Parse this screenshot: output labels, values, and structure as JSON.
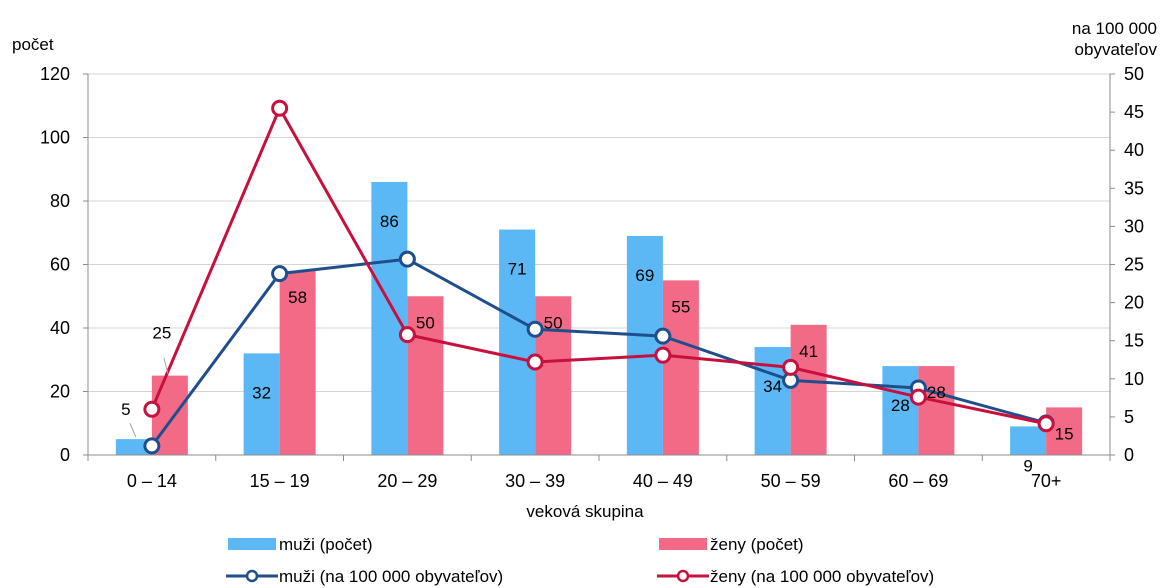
{
  "chart_data": {
    "type": "bar",
    "xlabel": "veková skupina",
    "ylabel_left": "počet",
    "ylabel_right_line1": "na 100 000",
    "ylabel_right_line2": "obyvateľov",
    "ylim_left": [
      0,
      120
    ],
    "ylim_right": [
      0,
      50
    ],
    "left_ticks": [
      "0",
      "20",
      "40",
      "60",
      "80",
      "100",
      "120"
    ],
    "right_ticks": [
      "0",
      "5",
      "10",
      "15",
      "20",
      "25",
      "30",
      "35",
      "40",
      "45",
      "50"
    ],
    "categories": [
      "0 – 14",
      "15 – 19",
      "20 – 29",
      "30 – 39",
      "40 – 49",
      "50 – 59",
      "60 – 69",
      "70+"
    ],
    "grid": true,
    "legend_position": "bottom",
    "series": [
      {
        "name": "muži (počet)",
        "type": "bar",
        "axis": "left",
        "color": "#5bb8f5",
        "values": [
          5,
          32,
          86,
          71,
          69,
          34,
          28,
          9
        ]
      },
      {
        "name": "ženy (počet)",
        "type": "bar",
        "axis": "left",
        "color": "#f26a86",
        "values": [
          25,
          58,
          50,
          50,
          55,
          41,
          28,
          15
        ]
      },
      {
        "name": "muži (na 100 000 obyvateľov)",
        "type": "line",
        "axis": "right",
        "color": "#1f4e8c",
        "values": [
          1.2,
          23.8,
          25.7,
          16.5,
          15.6,
          9.8,
          8.8,
          4.2
        ]
      },
      {
        "name": "ženy (na 100 000 obyvateľov)",
        "type": "line",
        "axis": "right",
        "color": "#c8103e",
        "values": [
          6.0,
          45.5,
          15.8,
          12.2,
          13.1,
          11.5,
          7.6,
          4.1
        ]
      }
    ]
  }
}
